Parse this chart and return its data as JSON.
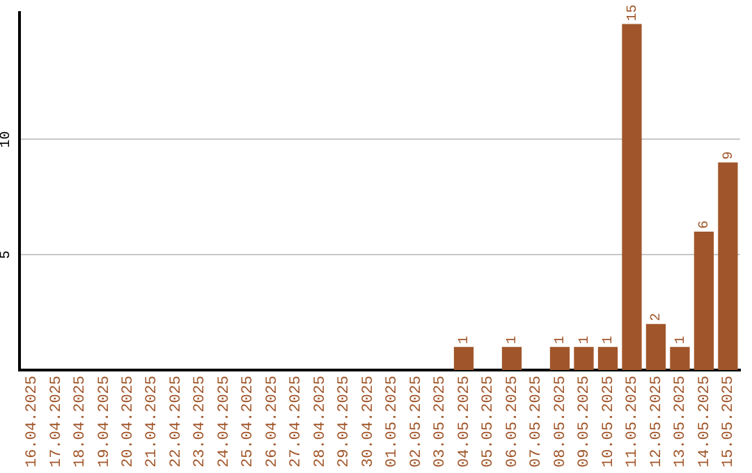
{
  "chart_data": {
    "type": "bar",
    "categories": [
      "16.04.2025",
      "17.04.2025",
      "18.04.2025",
      "19.04.2025",
      "20.04.2025",
      "21.04.2025",
      "22.04.2025",
      "23.04.2025",
      "24.04.2025",
      "25.04.2025",
      "26.04.2025",
      "27.04.2025",
      "28.04.2025",
      "29.04.2025",
      "30.04.2025",
      "01.05.2025",
      "02.05.2025",
      "03.05.2025",
      "04.05.2025",
      "05.05.2025",
      "06.05.2025",
      "07.05.2025",
      "08.05.2025",
      "09.05.2025",
      "10.05.2025",
      "11.05.2025",
      "12.05.2025",
      "13.05.2025",
      "14.05.2025",
      "15.05.2025"
    ],
    "values": [
      0,
      0,
      0,
      0,
      0,
      0,
      0,
      0,
      0,
      0,
      0,
      0,
      0,
      0,
      0,
      0,
      0,
      0,
      1,
      0,
      1,
      0,
      1,
      1,
      1,
      15,
      2,
      1,
      6,
      9
    ],
    "value_labels": [
      null,
      null,
      null,
      null,
      null,
      null,
      null,
      null,
      null,
      null,
      null,
      null,
      null,
      null,
      null,
      null,
      null,
      null,
      "1",
      null,
      "1",
      null,
      "1",
      "1",
      "1",
      "15",
      "2",
      "1",
      "6",
      "9"
    ],
    "color": "#a0562a",
    "ylim": [
      0,
      15.5
    ],
    "yticks": [
      5,
      10
    ],
    "grid": "y",
    "legend": false
  }
}
